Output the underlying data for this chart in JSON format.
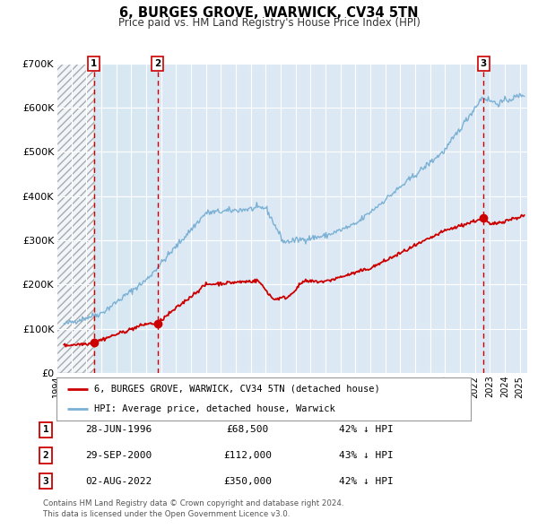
{
  "title": "6, BURGES GROVE, WARWICK, CV34 5TN",
  "subtitle": "Price paid vs. HM Land Registry's House Price Index (HPI)",
  "ylim": [
    0,
    700000
  ],
  "yticks": [
    0,
    100000,
    200000,
    300000,
    400000,
    500000,
    600000,
    700000
  ],
  "ytick_labels": [
    "£0",
    "£100K",
    "£200K",
    "£300K",
    "£400K",
    "£500K",
    "£600K",
    "£700K"
  ],
  "xlim_start": 1994.0,
  "xlim_end": 2025.5,
  "background_color": "#ffffff",
  "plot_bg_color": "#dce9f5",
  "grid_color": "#ffffff",
  "hpi_line_color": "#7ab0d4",
  "price_line_color": "#cc0000",
  "sale_marker_color": "#cc0000",
  "vline_color": "#cc0000",
  "shaded_region_color": "#d8e8f3",
  "transactions": [
    {
      "num": 1,
      "date_label": "28-JUN-1996",
      "date_decimal": 1996.49,
      "price": 68500,
      "pct": "42%",
      "dir": "↓"
    },
    {
      "num": 2,
      "date_label": "29-SEP-2000",
      "date_decimal": 2000.75,
      "price": 112000,
      "pct": "43%",
      "dir": "↓"
    },
    {
      "num": 3,
      "date_label": "02-AUG-2022",
      "date_decimal": 2022.58,
      "price": 350000,
      "pct": "42%",
      "dir": "↓"
    }
  ],
  "legend_label_red": "6, BURGES GROVE, WARWICK, CV34 5TN (detached house)",
  "legend_label_blue": "HPI: Average price, detached house, Warwick",
  "footer_line1": "Contains HM Land Registry data © Crown copyright and database right 2024.",
  "footer_line2": "This data is licensed under the Open Government Licence v3.0."
}
